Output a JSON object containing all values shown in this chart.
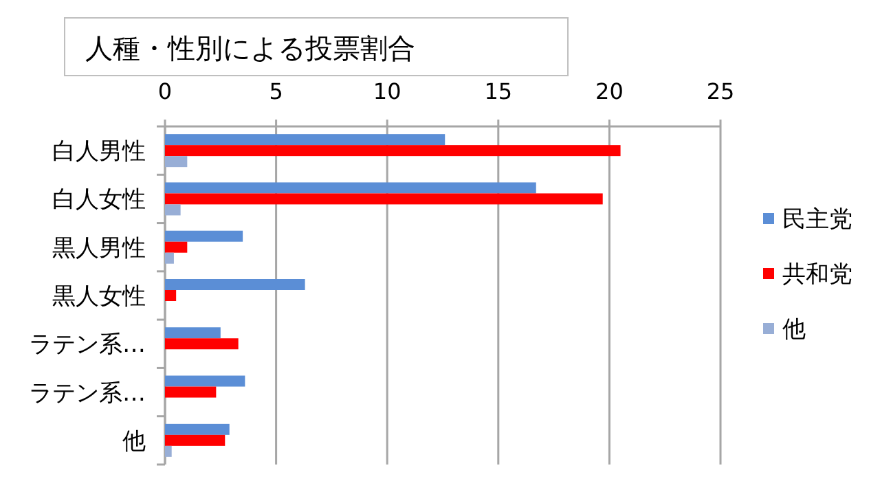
{
  "chart_data": {
    "type": "bar",
    "orientation": "horizontal",
    "title": "人種・性別による投票割合",
    "categories": [
      "白人男性",
      "白人女性",
      "黒人男性",
      "黒人女性",
      "ラテン系…",
      "ラテン系…",
      "他"
    ],
    "series": [
      {
        "name": "民主党",
        "color": "#5b8ed6",
        "values": [
          12.6,
          16.7,
          3.5,
          6.3,
          2.5,
          3.6,
          2.9
        ]
      },
      {
        "name": "共和党",
        "color": "#ff0000",
        "values": [
          20.5,
          19.7,
          1.0,
          0.5,
          3.3,
          2.3,
          2.7
        ]
      },
      {
        "name": "他",
        "color": "#98aed6",
        "values": [
          1.0,
          0.7,
          0.4,
          null,
          null,
          0.0,
          0.3
        ]
      }
    ],
    "xlim": [
      0,
      25
    ],
    "xticks": [
      0,
      5,
      10,
      15,
      20,
      25
    ],
    "grid": "x",
    "legend": "right"
  }
}
